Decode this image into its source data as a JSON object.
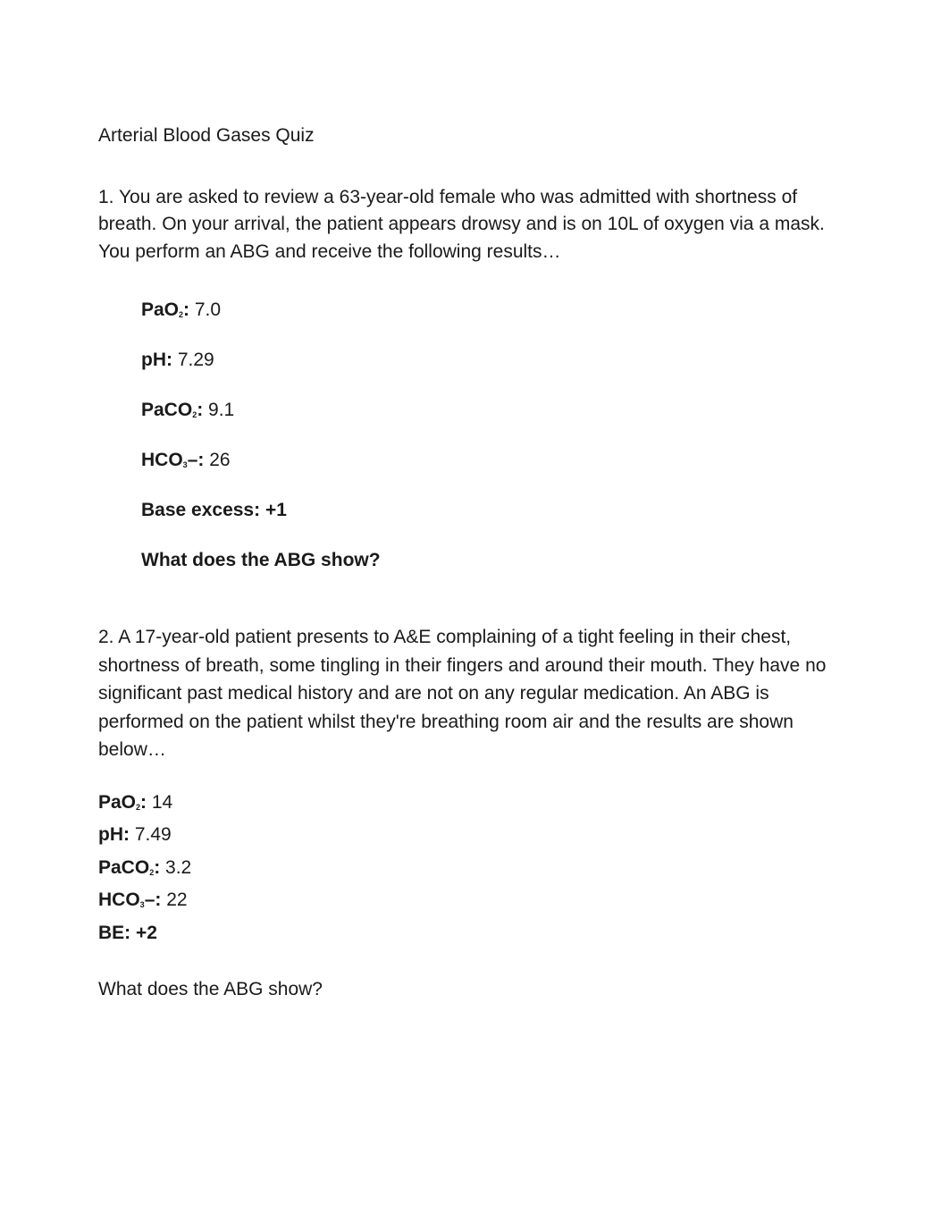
{
  "document": {
    "title": "Arterial Blood Gases Quiz",
    "background_color": "#ffffff",
    "text_color": "#1a1a1a",
    "body_fontsize": 21,
    "sub_fontsize": 9
  },
  "q1": {
    "prompt": "1. You are asked to review a 63-year-old female who was admitted with shortness of breath. On your arrival, the patient appears drowsy and is on 10L of oxygen via a mask.  You perform an ABG and receive the following results…",
    "abg": {
      "pao2_label_pre": "PaO",
      "pao2_sub": "2",
      "pao2_label_post": ":",
      "pao2_val": " 7.0",
      "ph_label": "pH:",
      "ph_val": " 7.29",
      "paco2_label_pre": "PaCO",
      "paco2_sub": "2",
      "paco2_label_post": ":",
      "paco2_val": " 9.1",
      "hco3_label_pre": "HCO",
      "hco3_sub": "3",
      "hco3_label_post": "–:",
      "hco3_val": " 26",
      "be_label": "Base excess: +1"
    },
    "question": "What does the ABG show?"
  },
  "q2": {
    "prompt": "2. A 17-year-old patient presents to A&E complaining of a tight feeling in their chest, shortness of breath, some tingling in their fingers and around their mouth. They have no significant past medical history and are not on any regular medication. An ABG is performed on the patient whilst they're breathing room air and the results are shown below…",
    "abg": {
      "pao2_label_pre": "PaO",
      "pao2_sub": "2",
      "pao2_label_post": ":",
      "pao2_val": " 14",
      "ph_label": "pH:",
      "ph_val": " 7.49",
      "paco2_label_pre": "PaCO",
      "paco2_sub": "2",
      "paco2_label_post": ":",
      "paco2_val": " 3.2",
      "hco3_label_pre": "HCO",
      "hco3_sub": "3",
      "hco3_label_post": "–:",
      "hco3_val": " 22",
      "be_label": "BE: +2"
    },
    "question": "What does the ABG show?"
  }
}
